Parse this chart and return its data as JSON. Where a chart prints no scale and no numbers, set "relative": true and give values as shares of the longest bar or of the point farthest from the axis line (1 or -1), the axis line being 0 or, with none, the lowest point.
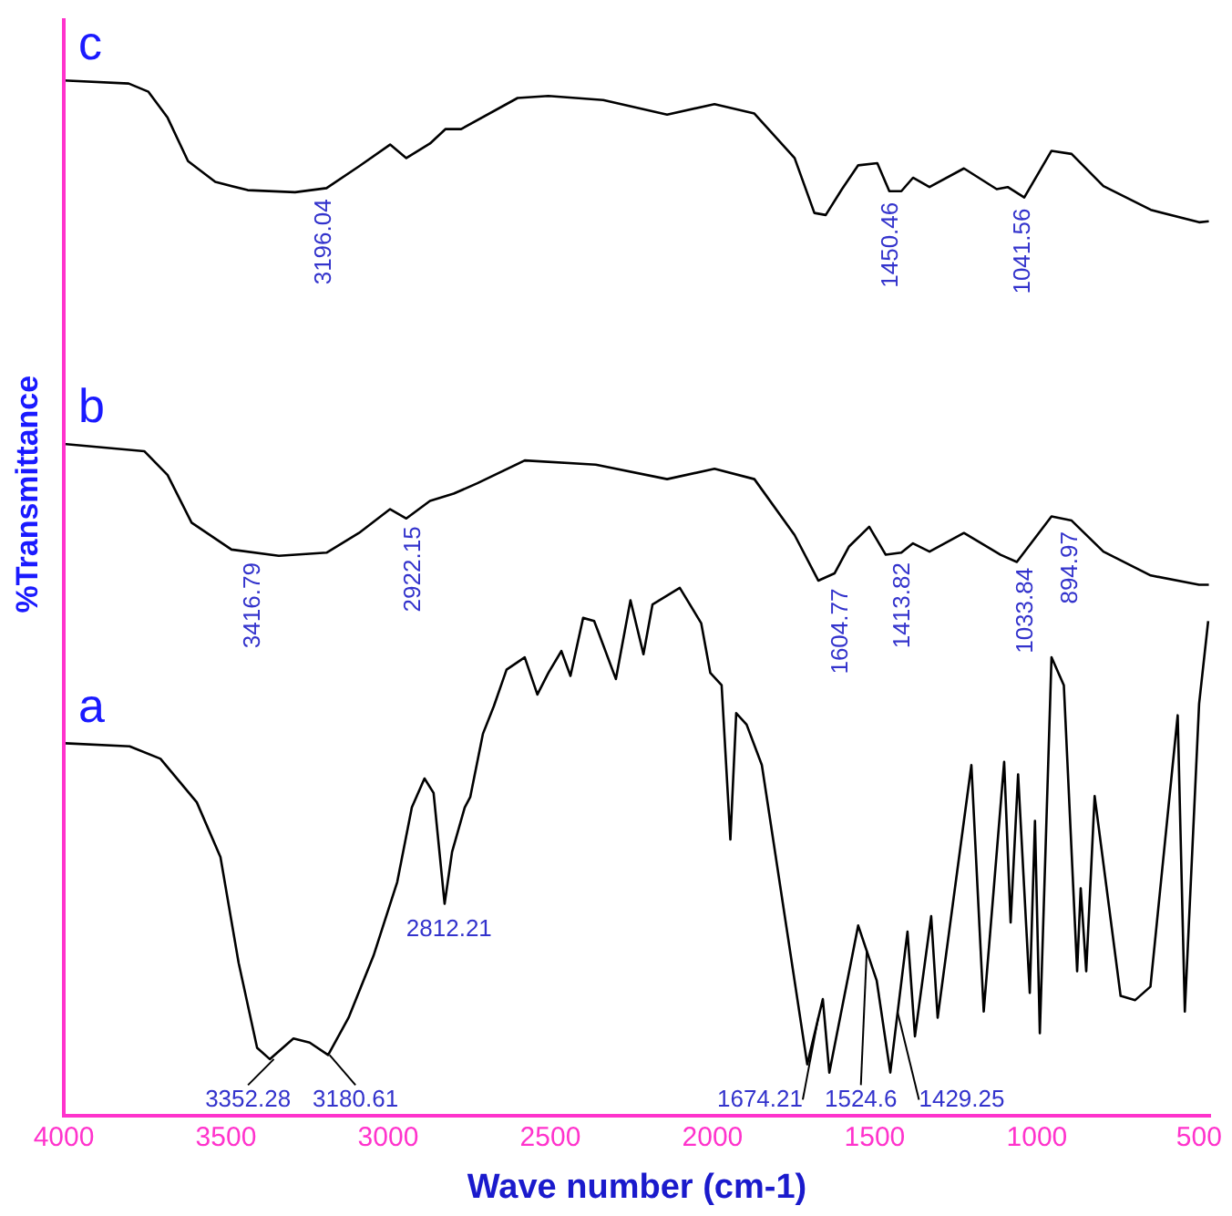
{
  "chart_data": {
    "type": "line",
    "xlabel": "Wave number (cm-1)",
    "ylabel": "%Transmittance",
    "relative": true,
    "xlim": [
      4000,
      466
    ],
    "xticks": [
      4000,
      3500,
      3000,
      2500,
      2000,
      1500,
      1000,
      500
    ],
    "grid": false,
    "legend": false,
    "marker": "none",
    "line_style": "solid",
    "series": [
      {
        "name": "c",
        "color": "#000000",
        "x": [
          4000,
          3800,
          3739,
          3680,
          3617,
          3533,
          3433,
          3287,
          3190,
          3090,
          2994,
          2944,
          2871,
          2823,
          2775,
          2601,
          2506,
          2337,
          2140,
          1994,
          1871,
          1747,
          1686,
          1651,
          1601,
          1551,
          1492,
          1455,
          1418,
          1382,
          1331,
          1225,
          1124,
          1090,
          1039,
          955,
          893,
          795,
          649,
          500,
          470
        ],
        "values": [
          1.0,
          0.997,
          0.989,
          0.964,
          0.922,
          0.902,
          0.894,
          0.892,
          0.896,
          0.917,
          0.938,
          0.925,
          0.939,
          0.953,
          0.953,
          0.983,
          0.985,
          0.981,
          0.967,
          0.977,
          0.968,
          0.925,
          0.872,
          0.87,
          0.895,
          0.918,
          0.92,
          0.893,
          0.893,
          0.906,
          0.897,
          0.915,
          0.895,
          0.897,
          0.887,
          0.932,
          0.929,
          0.898,
          0.875,
          0.863,
          0.864
        ]
      },
      {
        "name": "b",
        "color": "#000000",
        "x": [
          4000,
          3752,
          3680,
          3606,
          3483,
          3337,
          3190,
          3090,
          2994,
          2944,
          2871,
          2798,
          2725,
          2579,
          2360,
          2140,
          1994,
          1871,
          1747,
          1674,
          1624,
          1579,
          1517,
          1466,
          1418,
          1382,
          1331,
          1225,
          1112,
          1062,
          955,
          893,
          795,
          649,
          500,
          470
        ],
        "values": [
          0.649,
          0.642,
          0.619,
          0.573,
          0.547,
          0.541,
          0.544,
          0.563,
          0.586,
          0.577,
          0.594,
          0.601,
          0.611,
          0.633,
          0.629,
          0.615,
          0.625,
          0.615,
          0.561,
          0.517,
          0.524,
          0.55,
          0.569,
          0.542,
          0.544,
          0.553,
          0.545,
          0.563,
          0.542,
          0.535,
          0.579,
          0.575,
          0.545,
          0.522,
          0.513,
          0.513
        ]
      },
      {
        "name": "a",
        "color": "#000000",
        "x": [
          3996,
          3797,
          3702,
          3590,
          3517,
          3461,
          3404,
          3365,
          3292,
          3242,
          3185,
          3122,
          3045,
          2972,
          2927,
          2888,
          2860,
          2826,
          2803,
          2764,
          2747,
          2708,
          2674,
          2635,
          2579,
          2540,
          2506,
          2466,
          2438,
          2399,
          2365,
          2354,
          2298,
          2253,
          2213,
          2185,
          2101,
          2035,
          2007,
          1972,
          1945,
          1927,
          1895,
          1848,
          1708,
          1660,
          1640,
          1551,
          1494,
          1452,
          1399,
          1376,
          1326,
          1306,
          1202,
          1164,
          1101,
          1081,
          1058,
          1022,
          1006,
          991,
          955,
          917,
          876,
          865,
          848,
          822,
          742,
          697,
          650,
          566,
          544,
          500,
          472
        ],
        "values": [
          0.36,
          0.357,
          0.345,
          0.303,
          0.25,
          0.148,
          0.066,
          0.055,
          0.075,
          0.071,
          0.059,
          0.095,
          0.155,
          0.226,
          0.298,
          0.326,
          0.312,
          0.205,
          0.255,
          0.298,
          0.308,
          0.369,
          0.396,
          0.431,
          0.443,
          0.407,
          0.428,
          0.449,
          0.425,
          0.481,
          0.478,
          0.469,
          0.422,
          0.498,
          0.446,
          0.494,
          0.51,
          0.476,
          0.428,
          0.416,
          0.267,
          0.389,
          0.378,
          0.339,
          0.05,
          0.113,
          0.042,
          0.184,
          0.131,
          0.042,
          0.178,
          0.077,
          0.193,
          0.095,
          0.339,
          0.101,
          0.342,
          0.187,
          0.33,
          0.119,
          0.285,
          0.08,
          0.443,
          0.416,
          0.14,
          0.22,
          0.14,
          0.309,
          0.116,
          0.112,
          0.125,
          0.387,
          0.101,
          0.398,
          0.478
        ]
      }
    ],
    "annotations": [
      {
        "text": "3196.04",
        "x": 3196.04,
        "y": 0.896
      },
      {
        "text": "1450.46",
        "x": 1450.46,
        "y": 0.893
      },
      {
        "text": "1041.56",
        "x": 1041.56,
        "y": 0.887
      },
      {
        "text": "3416.79",
        "x": 3416.79,
        "y": 0.545
      },
      {
        "text": "2922.15",
        "x": 2922.15,
        "y": 0.58
      },
      {
        "text": "1604.77",
        "x": 1604.77,
        "y": 0.52
      },
      {
        "text": "1413.82",
        "x": 1413.82,
        "y": 0.545
      },
      {
        "text": "1033.84",
        "x": 1033.84,
        "y": 0.54
      },
      {
        "text": "894.97",
        "x": 894.97,
        "y": 0.575
      },
      {
        "text": "2812.21",
        "x": 2812.21,
        "y": 0.205
      },
      {
        "text": "3352.28",
        "x": 3352.28,
        "y": 0.055
      },
      {
        "text": "3180.61",
        "x": 3180.61,
        "y": 0.059
      },
      {
        "text": "1674.21",
        "x": 1674.21,
        "y": 0.095
      },
      {
        "text": "1524.6",
        "x": 1524.6,
        "y": 0.16
      },
      {
        "text": "1429.25",
        "x": 1429.25,
        "y": 0.1
      }
    ]
  }
}
